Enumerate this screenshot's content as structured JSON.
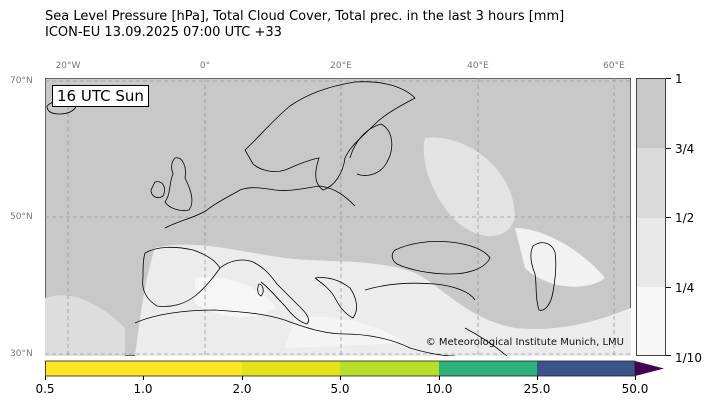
{
  "header": {
    "title_line1": "Sea Level Pressure [hPa], Total Cloud Cover, Total prec. in the last 3 hours [mm]",
    "title_line2": "ICON-EU 13.09.2025 07:00 UTC +33"
  },
  "map": {
    "time_label": "16 UTC Sun",
    "credit": "© Meteorological Institute Munich, LMU",
    "longitude_labels": [
      "20°W",
      "0°",
      "20°E",
      "40°E",
      "60°E"
    ],
    "latitude_labels": [
      "70°N",
      "50°N",
      "30°N"
    ],
    "colors": {
      "land_cloud": "#c8c8c8",
      "clear": "#f4f4f4",
      "mid": "#dcdcdc",
      "coast": "#000000",
      "grid": "#9a9a9a"
    }
  },
  "cloud_colorbar": {
    "labels": [
      "1",
      "3/4",
      "1/2",
      "1/4",
      "1/10"
    ],
    "colors": [
      "#c8c8c8",
      "#dadada",
      "#e9e9e9",
      "#f7f7f7"
    ]
  },
  "precip_colorbar": {
    "labels": [
      "0.5",
      "1.0",
      "2.0",
      "5.0",
      "10.0",
      "25.0",
      "50.0"
    ],
    "colors": [
      "#fde725",
      "#e2e31b",
      "#b8de29",
      "#2db27d",
      "#3b528b"
    ],
    "extend_color": "#440154"
  }
}
